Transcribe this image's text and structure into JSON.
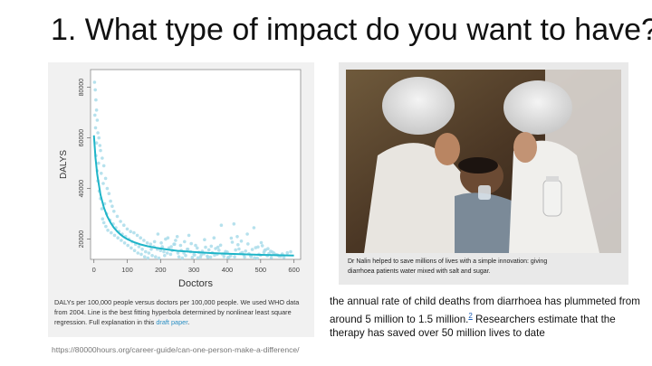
{
  "slide": {
    "title": "1. What type of impact do you want to have?",
    "source_url": "https://80000hours.org/career-guide/can-one-person-make-a-difference/"
  },
  "left_figure": {
    "caption_text": "DALYs per 100,000 people versus doctors per 100,000 people. We used WHO data from 2004. Line is the best fitting hyperbola determined by nonlinear least square regression. Full explanation in this ",
    "caption_link": "draft paper",
    "caption_end": "."
  },
  "chart_data": {
    "type": "scatter",
    "xlabel": "Doctors",
    "ylabel": "DALYS",
    "xlim": [
      -10,
      620
    ],
    "ylim": [
      12000,
      87000
    ],
    "xticks": [
      0,
      100,
      200,
      300,
      400,
      500,
      600
    ],
    "yticks": [
      20000,
      40000,
      60000,
      80000
    ],
    "ytick_labels": [
      "20000",
      "40000",
      "60000",
      "80000"
    ],
    "grid": false,
    "colors": {
      "points": "#a9dcea",
      "fit_line": "#1fb5c8"
    },
    "points": [
      [
        2,
        82000
      ],
      [
        4,
        79000
      ],
      [
        6,
        75000
      ],
      [
        8,
        71000
      ],
      [
        3,
        69000
      ],
      [
        10,
        67000
      ],
      [
        5,
        64000
      ],
      [
        12,
        62000
      ],
      [
        15,
        60000
      ],
      [
        8,
        58000
      ],
      [
        18,
        57000
      ],
      [
        20,
        55000
      ],
      [
        6,
        53000
      ],
      [
        25,
        52000
      ],
      [
        14,
        50000
      ],
      [
        30,
        49000
      ],
      [
        10,
        47000
      ],
      [
        22,
        46000
      ],
      [
        35,
        44000
      ],
      [
        12,
        43000
      ],
      [
        28,
        42000
      ],
      [
        40,
        40000
      ],
      [
        16,
        39000
      ],
      [
        45,
        38000
      ],
      [
        20,
        36000
      ],
      [
        50,
        35000
      ],
      [
        32,
        34000
      ],
      [
        55,
        33000
      ],
      [
        24,
        32000
      ],
      [
        60,
        31000
      ],
      [
        38,
        30000
      ],
      [
        70,
        29000
      ],
      [
        26,
        28000
      ],
      [
        48,
        27500
      ],
      [
        80,
        27000
      ],
      [
        30,
        26500
      ],
      [
        58,
        26000
      ],
      [
        90,
        25500
      ],
      [
        36,
        25000
      ],
      [
        66,
        24500
      ],
      [
        100,
        24000
      ],
      [
        42,
        23500
      ],
      [
        75,
        23000
      ],
      [
        110,
        23000
      ],
      [
        52,
        22500
      ],
      [
        85,
        22000
      ],
      [
        120,
        22500
      ],
      [
        62,
        21500
      ],
      [
        95,
        21000
      ],
      [
        130,
        21500
      ],
      [
        72,
        20500
      ],
      [
        105,
        20000
      ],
      [
        140,
        20500
      ],
      [
        82,
        19500
      ],
      [
        115,
        19000
      ],
      [
        150,
        19500
      ],
      [
        92,
        18500
      ],
      [
        125,
        18000
      ],
      [
        160,
        18500
      ],
      [
        102,
        17500
      ],
      [
        135,
        17000
      ],
      [
        170,
        18000
      ],
      [
        112,
        16500
      ],
      [
        145,
        16000
      ],
      [
        180,
        17000
      ],
      [
        122,
        15500
      ],
      [
        155,
        15000
      ],
      [
        190,
        16000
      ],
      [
        132,
        14500
      ],
      [
        165,
        14500
      ],
      [
        200,
        15500
      ],
      [
        142,
        14000
      ],
      [
        175,
        13500
      ],
      [
        210,
        15000
      ],
      [
        152,
        13000
      ],
      [
        185,
        13000
      ],
      [
        220,
        14500
      ],
      [
        162,
        12500
      ],
      [
        195,
        12500
      ],
      [
        230,
        14000
      ],
      [
        172,
        16000
      ],
      [
        205,
        17000
      ],
      [
        240,
        18000
      ],
      [
        182,
        19000
      ],
      [
        215,
        20000
      ],
      [
        250,
        21000
      ],
      [
        192,
        22000
      ],
      [
        225,
        16500
      ],
      [
        260,
        17500
      ],
      [
        202,
        18500
      ],
      [
        235,
        15500
      ],
      [
        270,
        14500
      ],
      [
        212,
        13500
      ],
      [
        245,
        19500
      ],
      [
        280,
        16000
      ],
      [
        222,
        20500
      ],
      [
        255,
        13000
      ],
      [
        290,
        15000
      ],
      [
        232,
        17000
      ],
      [
        265,
        12500
      ],
      [
        300,
        14000
      ],
      [
        242,
        18000
      ],
      [
        275,
        13500
      ],
      [
        310,
        16500
      ],
      [
        252,
        14500
      ],
      [
        285,
        21500
      ],
      [
        320,
        13000
      ],
      [
        262,
        15500
      ],
      [
        295,
        12800
      ],
      [
        330,
        14200
      ],
      [
        272,
        19000
      ],
      [
        305,
        17500
      ],
      [
        340,
        13300
      ],
      [
        282,
        16000
      ],
      [
        315,
        14800
      ],
      [
        350,
        12900
      ],
      [
        292,
        18200
      ],
      [
        325,
        15200
      ],
      [
        360,
        20500
      ],
      [
        302,
        13700
      ],
      [
        335,
        16800
      ],
      [
        370,
        14000
      ],
      [
        312,
        12600
      ],
      [
        345,
        15800
      ],
      [
        380,
        17600
      ],
      [
        322,
        13900
      ],
      [
        355,
        14600
      ],
      [
        390,
        13100
      ],
      [
        332,
        19800
      ],
      [
        365,
        16300
      ],
      [
        400,
        14900
      ],
      [
        342,
        12800
      ],
      [
        375,
        15600
      ],
      [
        410,
        13400
      ],
      [
        352,
        17200
      ],
      [
        385,
        14100
      ],
      [
        420,
        26000
      ],
      [
        362,
        13600
      ],
      [
        395,
        15100
      ],
      [
        430,
        21000
      ],
      [
        372,
        16800
      ],
      [
        405,
        12900
      ],
      [
        440,
        14400
      ],
      [
        382,
        25500
      ],
      [
        415,
        18800
      ],
      [
        450,
        13800
      ],
      [
        392,
        14300
      ],
      [
        425,
        15700
      ],
      [
        460,
        22000
      ],
      [
        402,
        12700
      ],
      [
        435,
        16100
      ],
      [
        470,
        13300
      ],
      [
        412,
        20400
      ],
      [
        445,
        14700
      ],
      [
        480,
        24500
      ],
      [
        422,
        13000
      ],
      [
        455,
        15300
      ],
      [
        490,
        12500
      ],
      [
        432,
        17800
      ],
      [
        465,
        14200
      ],
      [
        500,
        13600
      ],
      [
        442,
        19200
      ],
      [
        475,
        15900
      ],
      [
        510,
        14800
      ],
      [
        452,
        12900
      ],
      [
        485,
        16600
      ],
      [
        520,
        13400
      ],
      [
        462,
        18100
      ],
      [
        495,
        14000
      ],
      [
        530,
        15200
      ],
      [
        472,
        13100
      ],
      [
        505,
        17400
      ],
      [
        540,
        14500
      ],
      [
        482,
        12600
      ],
      [
        515,
        15800
      ],
      [
        550,
        13800
      ],
      [
        492,
        16900
      ],
      [
        525,
        14300
      ],
      [
        560,
        13200
      ],
      [
        502,
        18600
      ],
      [
        535,
        14900
      ],
      [
        570,
        12800
      ],
      [
        512,
        15500
      ],
      [
        545,
        13900
      ],
      [
        580,
        14600
      ],
      [
        522,
        16200
      ],
      [
        555,
        13300
      ],
      [
        590,
        15000
      ],
      [
        532,
        12700
      ],
      [
        565,
        14100
      ]
    ],
    "fit_line": {
      "model": "hyperbola",
      "x": [
        0,
        5,
        10,
        20,
        30,
        40,
        50,
        60,
        70,
        80,
        90,
        100,
        120,
        140,
        160,
        180,
        200,
        220,
        250,
        300,
        350,
        400,
        450,
        500,
        550,
        600
      ],
      "y": [
        61000,
        52000,
        45500,
        37500,
        32500,
        29000,
        26500,
        24500,
        23000,
        21800,
        20800,
        20000,
        18800,
        17900,
        17200,
        16700,
        16300,
        15900,
        15400,
        14900,
        14500,
        14200,
        14000,
        13800,
        13650,
        13500
      ]
    }
  },
  "right_figure": {
    "photo_alt_subject": "medical-workers-photo",
    "caption_line1": "Dr Nalin helped to save millions of lives with a simple innovation: giving",
    "caption_line2": "diarrhoea patients water mixed with salt and sugar."
  },
  "body": {
    "text_before_ref": "the annual rate of child deaths from diarrhoea has plummeted from around 5 million to 1.5 million.",
    "ref_mark": "2",
    "text_after_ref": " Researchers estimate that the therapy has saved over 50 million lives to date"
  }
}
